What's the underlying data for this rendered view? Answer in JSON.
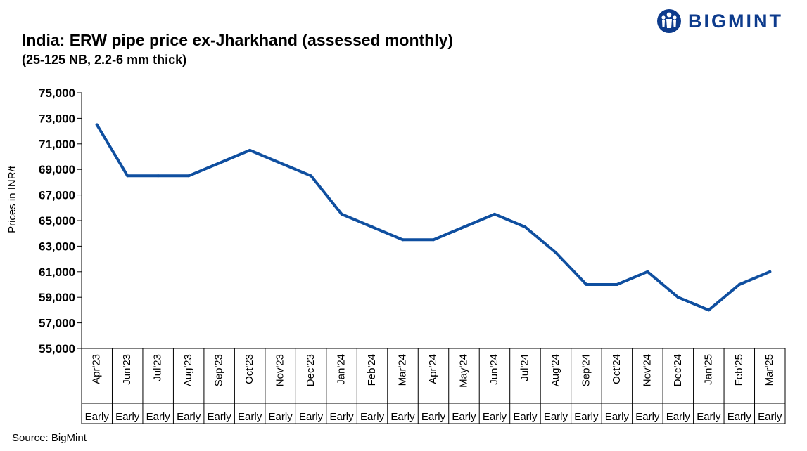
{
  "header": {
    "title": "India: ERW pipe price ex-Jharkhand (assessed monthly)",
    "subtitle": "(25-125 NB, 2.2-6 mm thick)",
    "logo_text": "BIGMINT",
    "logo_icon": "bigmint-figure-icon"
  },
  "footer": {
    "source": "Source: BigMint"
  },
  "colors": {
    "line": "#0f4fa0",
    "logo": "#0d3b8c"
  },
  "chart_data": {
    "type": "line",
    "title": "India: ERW pipe price ex-Jharkhand (assessed monthly)",
    "subtitle": "(25-125 NB, 2.2-6 mm thick)",
    "ylabel": "Prices in INR/t",
    "xlabel": "",
    "ylim": [
      55000,
      75000
    ],
    "yticks": [
      55000,
      57000,
      59000,
      61000,
      63000,
      65000,
      67000,
      69000,
      71000,
      73000,
      75000
    ],
    "ytick_labels": [
      "55,000",
      "57,000",
      "59,000",
      "61,000",
      "63,000",
      "65,000",
      "67,000",
      "69,000",
      "71,000",
      "73,000",
      "75,000"
    ],
    "categories": [
      "Apr'23",
      "Jun'23",
      "Jul'23",
      "Aug'23",
      "Sep'23",
      "Oct'23",
      "Nov'23",
      "Dec'23",
      "Jan'24",
      "Feb'24",
      "Mar'24",
      "Apr'24",
      "May'24",
      "Jun'24",
      "Jul'24",
      "Aug'24",
      "Sep'24",
      "Oct'24",
      "Nov'24",
      "Dec'24",
      "Jan'25",
      "Feb'25",
      "Mar'25"
    ],
    "sub_categories": [
      "Early",
      "Early",
      "Early",
      "Early",
      "Early",
      "Early",
      "Early",
      "Early",
      "Early",
      "Early",
      "Early",
      "Early",
      "Early",
      "Early",
      "Early",
      "Early",
      "Early",
      "Early",
      "Early",
      "Early",
      "Early",
      "Early",
      "Early"
    ],
    "series": [
      {
        "values": [
          72500,
          68500,
          68500,
          68500,
          69500,
          70500,
          69500,
          68500,
          65500,
          64500,
          63500,
          63500,
          64500,
          65500,
          64500,
          62500,
          60000,
          60000,
          61000,
          59000,
          58000,
          60000,
          61000
        ]
      }
    ],
    "grid": false,
    "legend": "none"
  }
}
